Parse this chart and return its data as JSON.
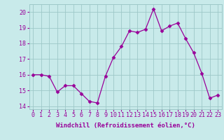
{
  "x": [
    0,
    1,
    2,
    3,
    4,
    5,
    6,
    7,
    8,
    9,
    10,
    11,
    12,
    13,
    14,
    15,
    16,
    17,
    18,
    19,
    20,
    21,
    22,
    23
  ],
  "y": [
    16.0,
    16.0,
    15.9,
    14.9,
    15.3,
    15.3,
    14.8,
    14.3,
    14.2,
    15.9,
    17.1,
    17.8,
    18.8,
    18.7,
    18.9,
    20.2,
    18.8,
    19.1,
    19.3,
    18.3,
    17.4,
    16.1,
    14.5,
    14.7
  ],
  "line_color": "#990099",
  "marker": "D",
  "marker_size": 2.5,
  "bg_color": "#c8eaea",
  "grid_color": "#9dc8c8",
  "xlabel": "Windchill (Refroidissement éolien,°C)",
  "xlabel_color": "#990099",
  "xlabel_fontsize": 6.5,
  "tick_color": "#990099",
  "tick_fontsize": 6.0,
  "ylim": [
    13.8,
    20.5
  ],
  "yticks": [
    14,
    15,
    16,
    17,
    18,
    19,
    20
  ],
  "xticks": [
    0,
    1,
    2,
    3,
    4,
    5,
    6,
    7,
    8,
    9,
    10,
    11,
    12,
    13,
    14,
    15,
    16,
    17,
    18,
    19,
    20,
    21,
    22,
    23
  ],
  "xlim": [
    -0.5,
    23.5
  ]
}
